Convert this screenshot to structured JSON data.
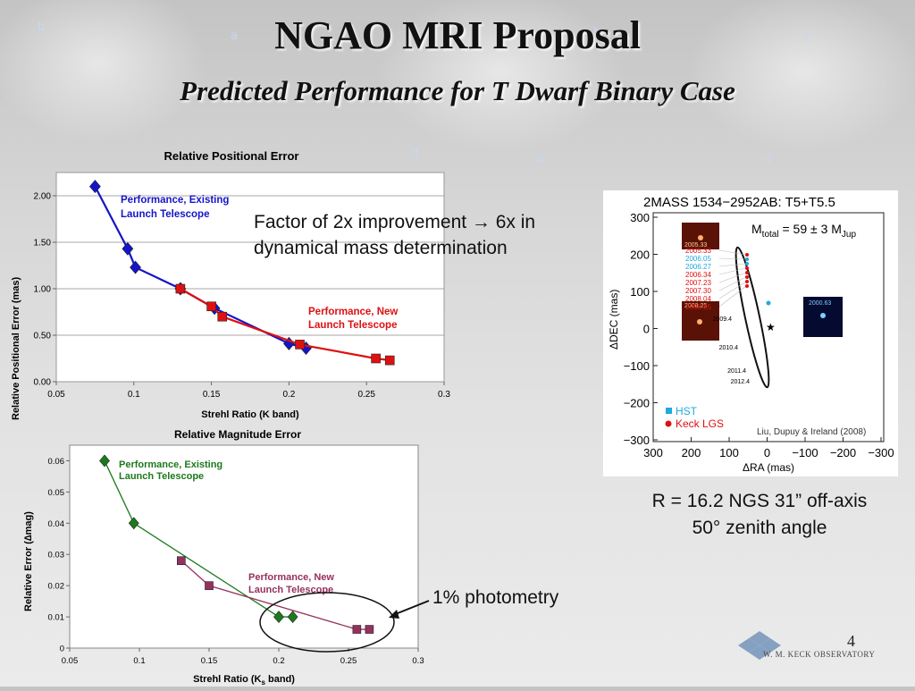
{
  "slide": {
    "title": "NGAO MRI Proposal",
    "subtitle": "Predicted Performance for T Dwarf Binary Case",
    "page_number": "4"
  },
  "factor_text": {
    "line1": "Factor of 2x improvement → 6x in",
    "line2": "dynamical mass determination"
  },
  "photometry_label": "1% photometry",
  "caption": {
    "line1": "R = 16.2 NGS 31” off-axis",
    "line2": "50° zenith angle"
  },
  "logo_text": "W. M. KECK OBSERVATORY",
  "colors": {
    "existing_positional": "#1414c8",
    "new": "#dd1111",
    "existing_magnitude": "#1c7a1c",
    "new_magnitude": "#96305e"
  },
  "inset": {
    "title": "2MASS 1534−2952AB: T5+T5.5",
    "mass_label": "M",
    "mass_sub1": "total",
    "mass_value": " = 59 ± 3 M",
    "mass_sub2": "Jup",
    "xlabel": "ΔRA (mas)",
    "ylabel": "ΔDEC (mas)",
    "xticks": [
      "300",
      "200",
      "100",
      "0",
      "−100",
      "−200",
      "−300"
    ],
    "yticks": [
      "300",
      "200",
      "100",
      "0",
      "−100",
      "−200",
      "−300"
    ],
    "epochs": [
      "2005.33",
      "2006.05",
      "2006.27",
      "2006.34",
      "2007.23",
      "2007.30",
      "2008.04",
      "2008.25"
    ],
    "epoch_colors": [
      "#e01010",
      "#20a8e0",
      "#20a8e0",
      "#e01010",
      "#e01010",
      "#e01010",
      "#e01010",
      "#e01010"
    ],
    "image_labels": [
      "2005.33",
      "2008.25",
      "2000.63"
    ],
    "predicted_epochs": [
      "2009.4",
      "2010.4",
      "2011.4",
      "2012.4"
    ],
    "legend": [
      "HST",
      "Keck LGS"
    ],
    "credit": "Liu, Dupuy & Ireland (2008)"
  },
  "chart_data": [
    {
      "type": "line",
      "title": "Relative Positional Error",
      "xlabel": "Strehl Ratio (K band)",
      "ylabel": "Relative Positional Error (mas)",
      "xlim": [
        0.05,
        0.3
      ],
      "ylim": [
        0,
        2.25
      ],
      "xticks": [
        "0.05",
        "0.1",
        "0.15",
        "0.2",
        "0.25",
        "0.3"
      ],
      "yticks": [
        "0.00",
        "0.50",
        "1.00",
        "1.50",
        "2.00"
      ],
      "grid": true,
      "series": [
        {
          "name": "Performance, Existing Launch Telescope",
          "label_lines": [
            "Performance, Existing",
            "Launch Telescope"
          ],
          "color": "#1414c8",
          "marker": "diamond",
          "x": [
            0.075,
            0.096,
            0.101,
            0.13,
            0.152,
            0.2,
            0.211
          ],
          "y": [
            2.1,
            1.43,
            1.23,
            1.0,
            0.79,
            0.41,
            0.36
          ]
        },
        {
          "name": "Performance, New Launch Telescope",
          "label_lines": [
            "Performance, New",
            "Launch Telescope"
          ],
          "color": "#dd1111",
          "marker": "square",
          "x": [
            0.13,
            0.15,
            0.157,
            0.207,
            0.256,
            0.265
          ],
          "y": [
            1.0,
            0.81,
            0.7,
            0.4,
            0.25,
            0.23
          ]
        }
      ]
    },
    {
      "type": "line",
      "title": "Relative Magnitude Error",
      "xlabel": "Strehl Ratio (K",
      "xlabel_sub": "s",
      "xlabel_tail": " band)",
      "ylabel": "Relative Error (∆mag)",
      "xlim": [
        0.05,
        0.3
      ],
      "ylim": [
        0,
        0.065
      ],
      "xticks": [
        "0.05",
        "0.1",
        "0.15",
        "0.2",
        "0.25",
        "0.3"
      ],
      "yticks": [
        "0",
        "0.01",
        "0.02",
        "0.03",
        "0.04",
        "0.05",
        "0.06"
      ],
      "grid": false,
      "series": [
        {
          "name": "Performance, Existing Launch Telescope",
          "label_lines": [
            "Performance, Existing",
            "Launch Telescope"
          ],
          "color": "#1c7a1c",
          "marker": "diamond",
          "x": [
            0.075,
            0.096,
            0.2,
            0.21
          ],
          "y": [
            0.06,
            0.04,
            0.01,
            0.01
          ]
        },
        {
          "name": "Performance, New Launch Telescope",
          "label_lines": [
            "Performance, New",
            "Launch Telescope"
          ],
          "color": "#96305e",
          "marker": "square",
          "x": [
            0.13,
            0.15,
            0.256,
            0.265
          ],
          "y": [
            0.028,
            0.02,
            0.006,
            0.006
          ]
        }
      ]
    }
  ]
}
